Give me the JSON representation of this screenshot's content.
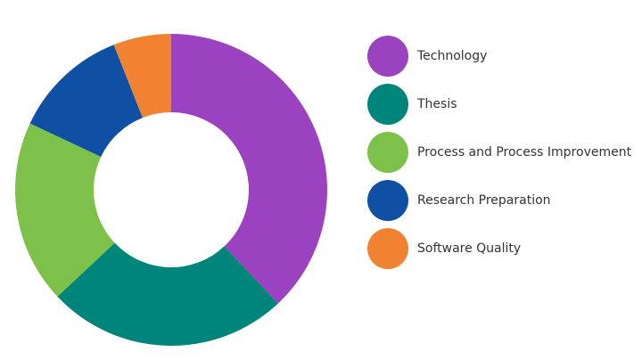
{
  "chart_data": {
    "type": "pie",
    "variant": "donut",
    "title": "",
    "categories": [
      "Technology",
      "Thesis",
      "Process and Process Improvement",
      "Research Preparation",
      "Software Quality"
    ],
    "values": [
      38,
      25,
      19,
      12,
      6
    ],
    "value_unit": "percent of total (estimated)",
    "colors": [
      "#9B42C1",
      "#00857A",
      "#7DC14A",
      "#0F4FA4",
      "#F08232"
    ],
    "start": "top",
    "direction": "clockwise",
    "legend": {
      "position": "right",
      "marker": "circle"
    }
  }
}
